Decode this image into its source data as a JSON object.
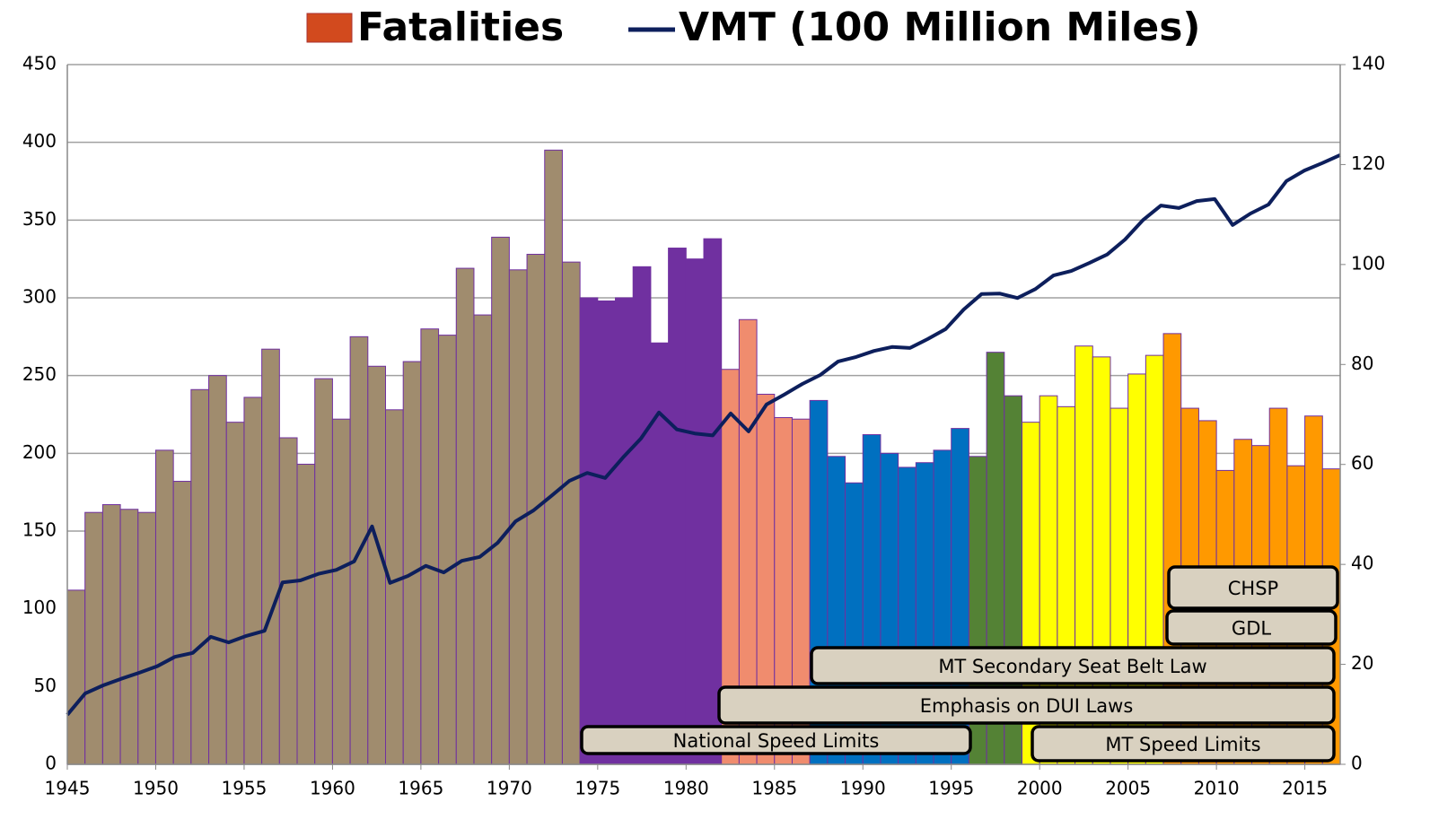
{
  "chart_data": {
    "type": "bar_line",
    "categories": [
      1945,
      1946,
      1947,
      1948,
      1949,
      1950,
      1951,
      1952,
      1953,
      1954,
      1955,
      1956,
      1957,
      1958,
      1959,
      1960,
      1961,
      1962,
      1963,
      1964,
      1965,
      1966,
      1967,
      1968,
      1969,
      1970,
      1971,
      1972,
      1973,
      1974,
      1975,
      1976,
      1977,
      1978,
      1979,
      1980,
      1981,
      1982,
      1983,
      1984,
      1985,
      1986,
      1987,
      1988,
      1989,
      1990,
      1991,
      1992,
      1993,
      1994,
      1995,
      1996,
      1997,
      1998,
      1999,
      2000,
      2001,
      2002,
      2003,
      2004,
      2005,
      2006,
      2007,
      2008,
      2009,
      2010,
      2011,
      2012,
      2013,
      2014,
      2015,
      2016
    ],
    "series": [
      {
        "name": "Fatalities",
        "color": "#d24a1e",
        "kind": "bar",
        "values": [
          112,
          162,
          167,
          164,
          162,
          202,
          182,
          241,
          250,
          220,
          236,
          267,
          210,
          193,
          248,
          222,
          275,
          256,
          228,
          259,
          280,
          276,
          319,
          289,
          339,
          318,
          328,
          395,
          323,
          300,
          298,
          300,
          320,
          271,
          332,
          325,
          338,
          254,
          286,
          238,
          223,
          222,
          234,
          198,
          181,
          212,
          200,
          191,
          194,
          202,
          216,
          198,
          265,
          237,
          220,
          237,
          230,
          269,
          262,
          229,
          251,
          263,
          277,
          229,
          221,
          189,
          209,
          205,
          229,
          192,
          224,
          190
        ],
        "colors": [
          "#a08c6e",
          "#a08c6e",
          "#a08c6e",
          "#a08c6e",
          "#a08c6e",
          "#a08c6e",
          "#a08c6e",
          "#a08c6e",
          "#a08c6e",
          "#a08c6e",
          "#a08c6e",
          "#a08c6e",
          "#a08c6e",
          "#a08c6e",
          "#a08c6e",
          "#a08c6e",
          "#a08c6e",
          "#a08c6e",
          "#a08c6e",
          "#a08c6e",
          "#a08c6e",
          "#a08c6e",
          "#a08c6e",
          "#a08c6e",
          "#a08c6e",
          "#a08c6e",
          "#a08c6e",
          "#a08c6e",
          "#a08c6e",
          "#7030a0",
          "#7030a0",
          "#7030a0",
          "#7030a0",
          "#7030a0",
          "#7030a0",
          "#7030a0",
          "#7030a0",
          "#f08c6e",
          "#f08c6e",
          "#f08c6e",
          "#f08c6e",
          "#f08c6e",
          "#0070c0",
          "#0070c0",
          "#0070c0",
          "#0070c0",
          "#0070c0",
          "#0070c0",
          "#0070c0",
          "#0070c0",
          "#0070c0",
          "#548235",
          "#548235",
          "#548235",
          "#ffff00",
          "#ffff00",
          "#ffff00",
          "#ffff00",
          "#ffff00",
          "#ffff00",
          "#ffff00",
          "#ffff00",
          "#ff9900",
          "#ff9900",
          "#ff9900",
          "#ff9900",
          "#ff9900",
          "#ff9900",
          "#ff9900",
          "#ff9900",
          "#ff9900",
          "#ff9900"
        ]
      },
      {
        "name": "VMT (100 Million Miles)",
        "color": "#0d1f5c",
        "kind": "line",
        "axis": "y2",
        "values": [
          9.9,
          14.2,
          15.8,
          17.1,
          18.3,
          19.6,
          21.5,
          22.3,
          25.5,
          24.4,
          25.7,
          26.7,
          36.4,
          36.8,
          38.1,
          38.9,
          40.6,
          47.6,
          36.3,
          37.7,
          39.7,
          38.4,
          40.7,
          41.5,
          44.3,
          48.6,
          50.8,
          53.7,
          56.7,
          58.3,
          57.3,
          61.4,
          65.2,
          70.4,
          67.0,
          66.2,
          65.8,
          70.2,
          66.6,
          72.0,
          74.0,
          76.1,
          77.9,
          80.6,
          81.5,
          82.7,
          83.5,
          83.3,
          85.1,
          87.1,
          91.0,
          94.1,
          94.2,
          93.3,
          95.1,
          97.8,
          98.7,
          100.3,
          102.0,
          105.0,
          108.9,
          111.8,
          111.3,
          112.7,
          113.1,
          107.9,
          110.2,
          112.0,
          116.7,
          118.8,
          120.3,
          121.9
        ]
      }
    ],
    "xticks": [
      1945,
      1950,
      1955,
      1960,
      1965,
      1970,
      1975,
      1980,
      1985,
      1990,
      1995,
      2000,
      2005,
      2010,
      2015
    ],
    "ylim": [
      0,
      450
    ],
    "yticks": [
      0,
      50,
      100,
      150,
      200,
      250,
      300,
      350,
      400,
      450
    ],
    "y2lim": [
      0,
      140
    ],
    "y2ticks": [
      0,
      20,
      40,
      60,
      80,
      100,
      120,
      140
    ],
    "grid": true,
    "annotations": [
      "CHSP",
      "GDL",
      "MT Secondary Seat Belt Law",
      "Emphasis on DUI Laws",
      "National Speed Limits",
      "MT Speed Limits"
    ]
  }
}
